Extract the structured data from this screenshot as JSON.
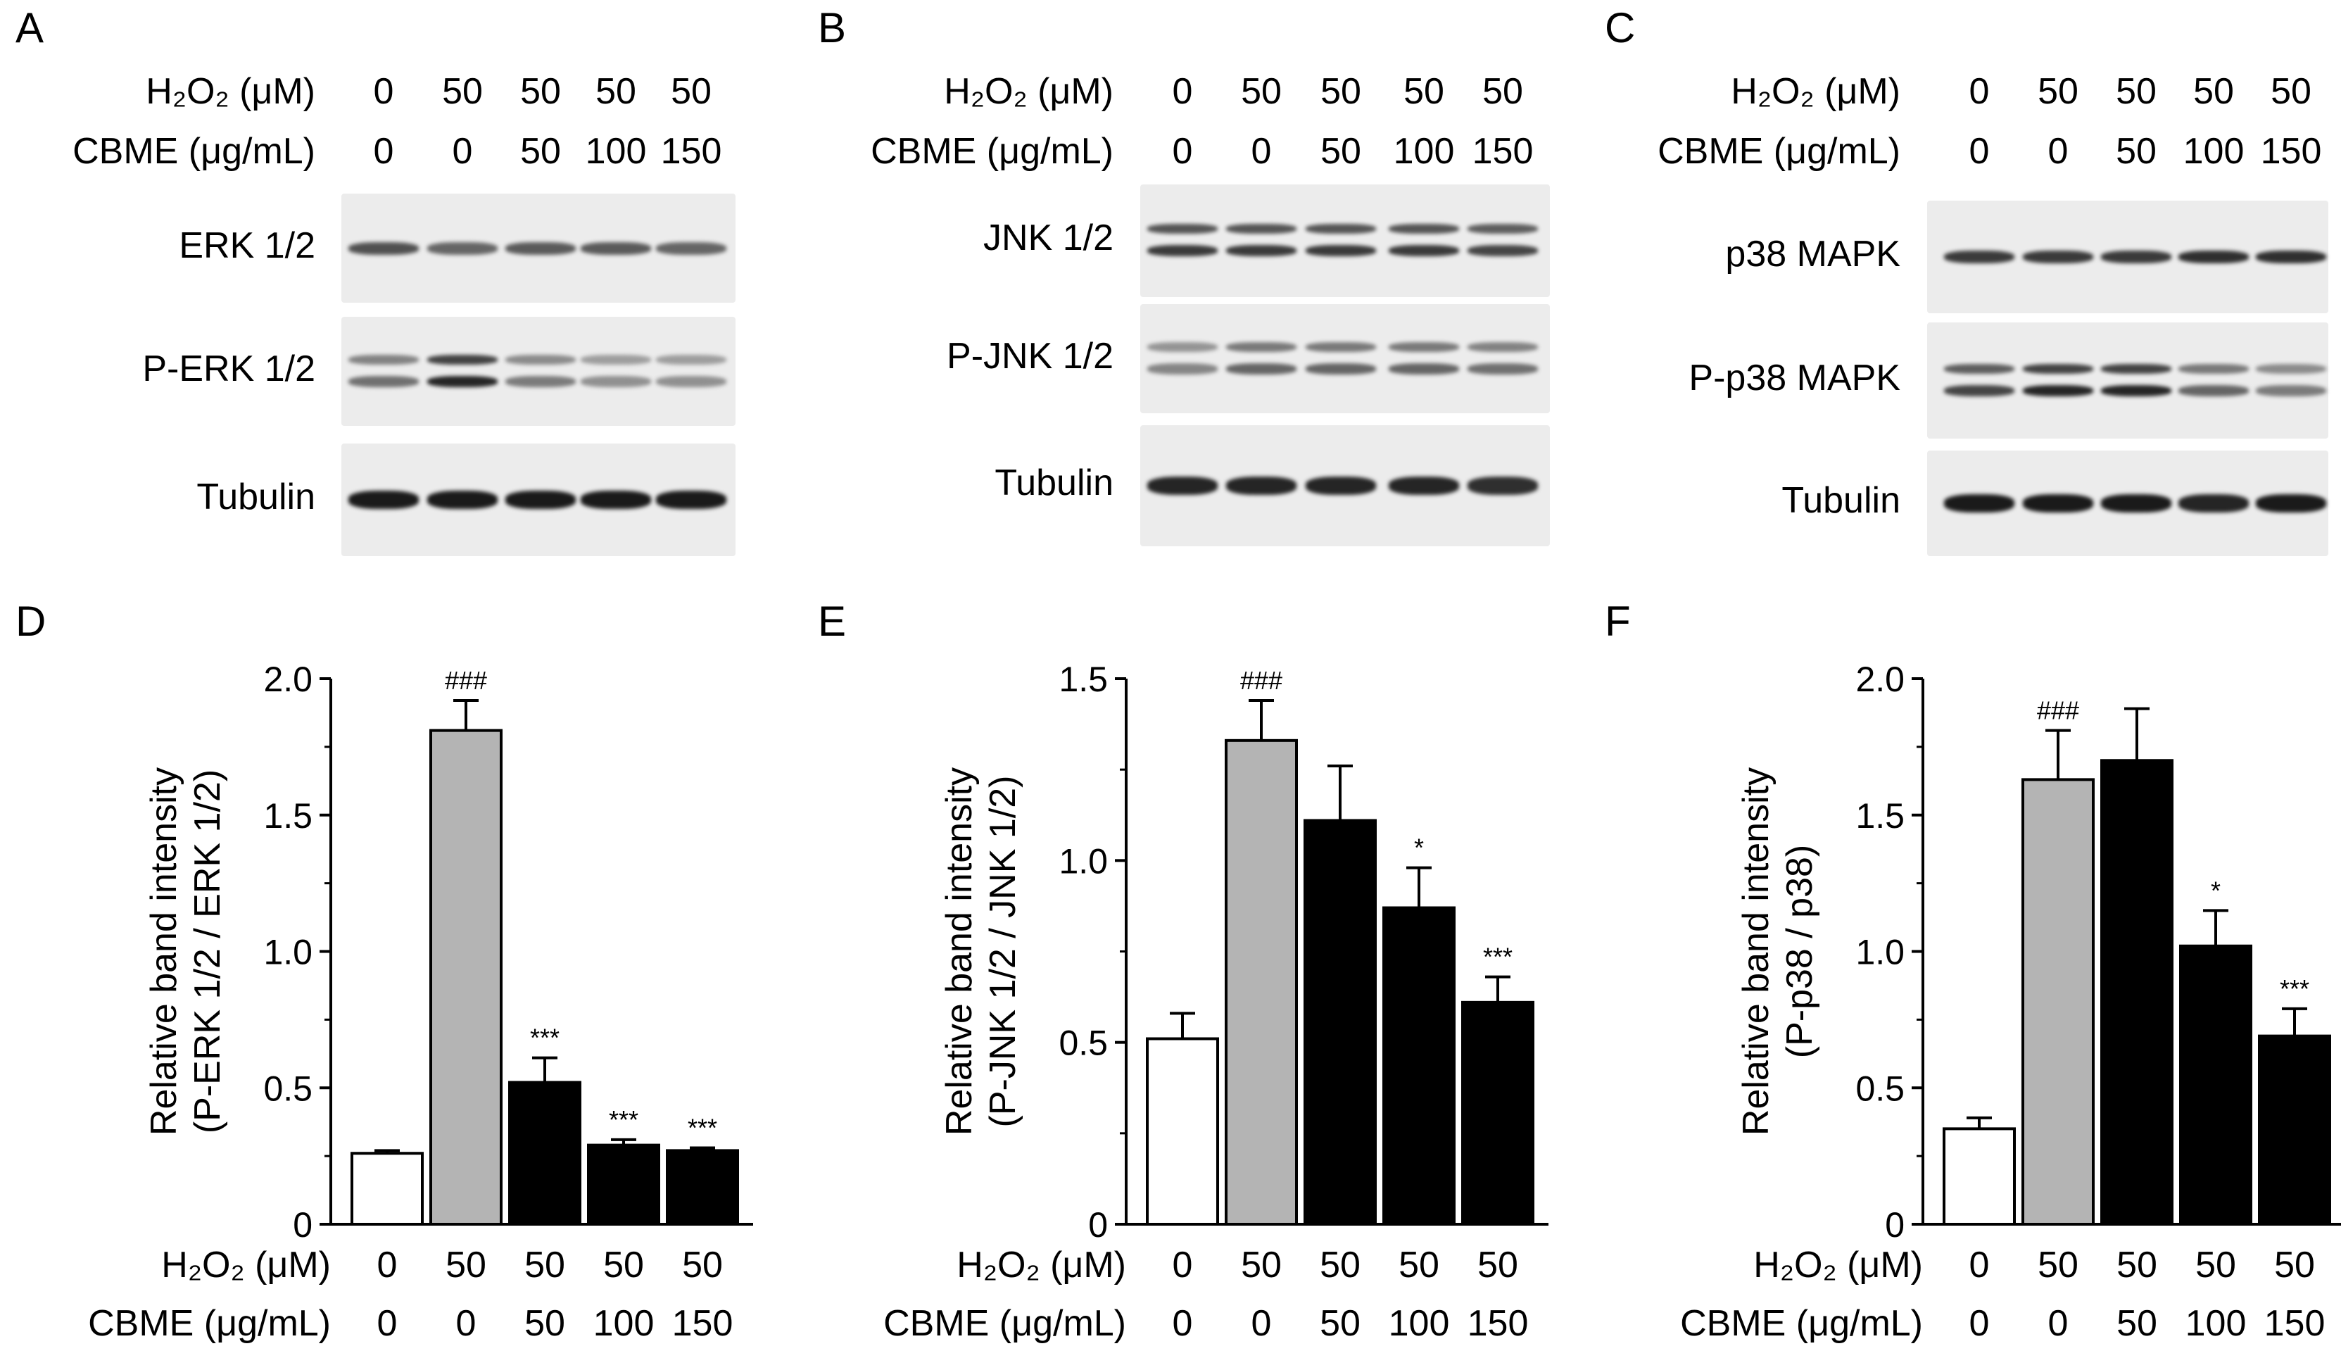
{
  "panels": {
    "A": "A",
    "B": "B",
    "C": "C",
    "D": "D",
    "E": "E",
    "F": "F"
  },
  "treatment": {
    "h2o2_label": "H₂O₂ (μM)",
    "cbme_label": "CBME (μg/mL)",
    "h2o2_values": [
      "0",
      "50",
      "50",
      "50",
      "50"
    ],
    "cbme_values": [
      "0",
      "0",
      "50",
      "100",
      "150"
    ]
  },
  "blots": {
    "A": [
      "ERK 1/2",
      "P-ERK 1/2",
      "Tubulin"
    ],
    "B": [
      "JNK 1/2",
      "P-JNK 1/2",
      "Tubulin"
    ],
    "C": [
      "p38 MAPK",
      "P-p38 MAPK",
      "Tubulin"
    ]
  },
  "band_intensity": {
    "A": [
      [
        0.7,
        0.6,
        0.65,
        0.65,
        0.6
      ],
      [
        0.55,
        0.9,
        0.5,
        0.4,
        0.4
      ],
      [
        0.95,
        0.95,
        0.95,
        0.95,
        0.95
      ]
    ],
    "B": [
      [
        0.8,
        0.8,
        0.8,
        0.8,
        0.75
      ],
      [
        0.45,
        0.6,
        0.6,
        0.6,
        0.55
      ],
      [
        0.9,
        0.9,
        0.9,
        0.9,
        0.85
      ]
    ],
    "C": [
      [
        0.8,
        0.8,
        0.8,
        0.85,
        0.85
      ],
      [
        0.75,
        0.9,
        0.9,
        0.6,
        0.5
      ],
      [
        0.95,
        0.95,
        0.95,
        0.9,
        0.95
      ]
    ]
  },
  "chart_data": [
    {
      "type": "bar",
      "categories": [
        "1",
        "2",
        "3",
        "4",
        "5"
      ],
      "values": [
        0.26,
        1.81,
        0.52,
        0.29,
        0.27
      ],
      "errors": [
        0.01,
        0.11,
        0.09,
        0.02,
        0.01
      ],
      "annotations": [
        "",
        "###",
        "***",
        "***",
        "***"
      ],
      "bar_colors": [
        "#ffffff",
        "#b4b4b4",
        "#000000",
        "#000000",
        "#000000"
      ],
      "ylim": [
        0,
        2.0
      ],
      "yticks": [
        0,
        0.5,
        1.0,
        1.5,
        2.0
      ],
      "ytick_labels": [
        "0",
        "0.5",
        "1.0",
        "1.5",
        "2.0"
      ],
      "ylabel_line1": "Relative band intensity",
      "ylabel_line2": "(P-ERK 1/2 / ERK 1/2)"
    },
    {
      "type": "bar",
      "categories": [
        "1",
        "2",
        "3",
        "4",
        "5"
      ],
      "values": [
        0.51,
        1.33,
        1.11,
        0.87,
        0.61
      ],
      "errors": [
        0.07,
        0.11,
        0.15,
        0.11,
        0.07
      ],
      "annotations": [
        "",
        "###",
        "",
        "*",
        "***"
      ],
      "bar_colors": [
        "#ffffff",
        "#b4b4b4",
        "#000000",
        "#000000",
        "#000000"
      ],
      "ylim": [
        0,
        1.5
      ],
      "yticks": [
        0,
        0.5,
        1.0,
        1.5
      ],
      "ytick_labels": [
        "0",
        "0.5",
        "1.0",
        "1.5"
      ],
      "ylabel_line1": "Relative band intensity",
      "ylabel_line2": "(P-JNK 1/2 / JNK 1/2)"
    },
    {
      "type": "bar",
      "categories": [
        "1",
        "2",
        "3",
        "4",
        "5"
      ],
      "values": [
        0.35,
        1.63,
        1.7,
        1.02,
        0.69
      ],
      "errors": [
        0.04,
        0.18,
        0.19,
        0.13,
        0.1
      ],
      "annotations": [
        "",
        "###",
        "",
        "*",
        "***"
      ],
      "bar_colors": [
        "#ffffff",
        "#b4b4b4",
        "#000000",
        "#000000",
        "#000000"
      ],
      "ylim": [
        0,
        2.0
      ],
      "yticks": [
        0,
        0.5,
        1.0,
        1.5,
        2.0
      ],
      "ytick_labels": [
        "0",
        "0.5",
        "1.0",
        "1.5",
        "2.0"
      ],
      "ylabel_line1": "Relative band intensity",
      "ylabel_line2": "(P-p38 / p38)"
    }
  ]
}
